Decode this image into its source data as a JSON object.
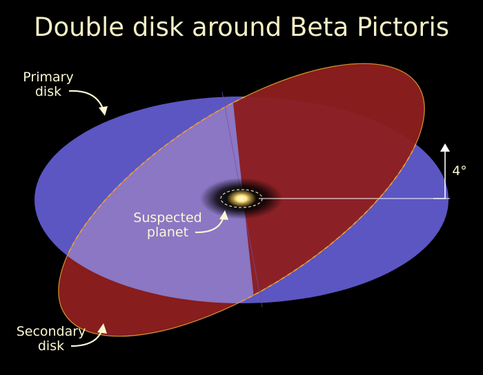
{
  "title": "Double disk around Beta Pictoris",
  "labels": {
    "primary_line1": "Primary",
    "primary_line2": "disk",
    "secondary_line1": "Secondary",
    "secondary_line2": "disk",
    "planet_line1": "Suspected",
    "planet_line2": "planet",
    "angle": "4°"
  },
  "colors": {
    "background": "#000000",
    "primary_disk": "#5b56c2",
    "primary_disk_front": "#8b77c4",
    "secondary_disk": "#8e1f1e",
    "secondary_edge": "#d8962f",
    "text": "#fbf7d2",
    "star": "#fff3b0"
  }
}
